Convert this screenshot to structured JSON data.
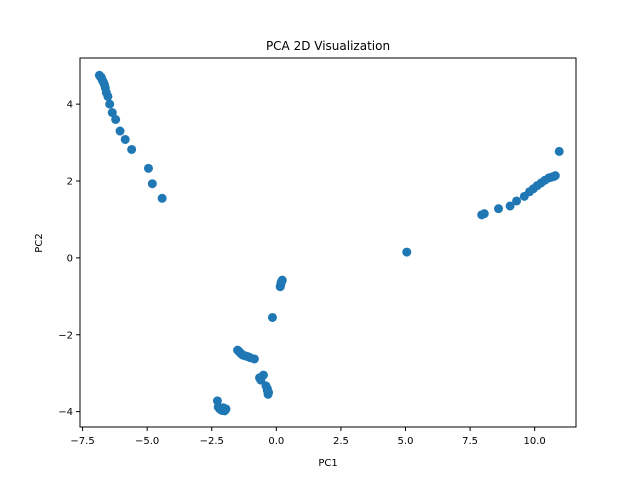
{
  "chart_data": {
    "type": "scatter",
    "title": "PCA 2D Visualization",
    "xlabel": "PC1",
    "ylabel": "PC2",
    "xlim": [
      -7.6,
      11.6
    ],
    "ylim": [
      -4.4,
      5.2
    ],
    "xticks": [
      -7.5,
      -5.0,
      -2.5,
      0.0,
      2.5,
      5.0,
      7.5,
      10.0
    ],
    "xtick_labels": [
      "−7.5",
      "−5.0",
      "−2.5",
      "0.0",
      "2.5",
      "5.0",
      "7.5",
      "10.0"
    ],
    "yticks": [
      -4,
      -2,
      0,
      2,
      4
    ],
    "ytick_labels": [
      "−4",
      "−2",
      "0",
      "2",
      "4"
    ],
    "grid": false,
    "color": "#1f77b4",
    "series": [
      {
        "x": [
          -6.85,
          -6.82,
          -6.78,
          -6.75,
          -6.72,
          -6.68,
          -6.65,
          -6.62,
          -6.58,
          -6.52,
          -6.45,
          -6.35,
          -6.22,
          -6.05,
          -5.85,
          -5.6,
          -4.95,
          -4.8,
          -4.42,
          -2.28,
          -2.25,
          -2.2,
          -2.15,
          -2.1,
          -2.05,
          -2.0,
          -1.97,
          -1.95,
          -1.5,
          -1.45,
          -1.4,
          -1.35,
          -1.3,
          -1.2,
          -1.1,
          -1.0,
          -0.85,
          -0.65,
          -0.6,
          -0.5,
          -0.4,
          -0.35,
          -0.3,
          -0.32,
          -0.35,
          -0.15,
          0.15,
          0.17,
          0.18,
          0.2,
          0.22,
          0.23,
          5.05,
          7.95,
          8.05,
          8.6,
          9.05,
          9.3,
          9.6,
          9.8,
          9.95,
          10.1,
          10.25,
          10.4,
          10.55,
          10.65,
          10.75,
          10.8,
          10.95
        ],
        "y": [
          4.75,
          4.72,
          4.7,
          4.65,
          4.6,
          4.55,
          4.5,
          4.42,
          4.3,
          4.2,
          4.0,
          3.78,
          3.6,
          3.3,
          3.08,
          2.82,
          2.33,
          1.93,
          1.55,
          -3.72,
          -3.88,
          -3.92,
          -3.95,
          -3.97,
          -3.9,
          -3.98,
          -3.95,
          -3.93,
          -2.4,
          -2.43,
          -2.47,
          -2.5,
          -2.53,
          -2.55,
          -2.57,
          -2.6,
          -2.63,
          -3.12,
          -3.18,
          -3.05,
          -3.33,
          -3.4,
          -3.5,
          -3.55,
          -3.45,
          -1.55,
          -0.75,
          -0.7,
          -0.65,
          -0.62,
          -0.6,
          -0.58,
          0.15,
          1.12,
          1.15,
          1.28,
          1.35,
          1.48,
          1.6,
          1.72,
          1.8,
          1.88,
          1.95,
          2.02,
          2.08,
          2.1,
          2.12,
          2.14,
          2.77
        ]
      }
    ]
  }
}
